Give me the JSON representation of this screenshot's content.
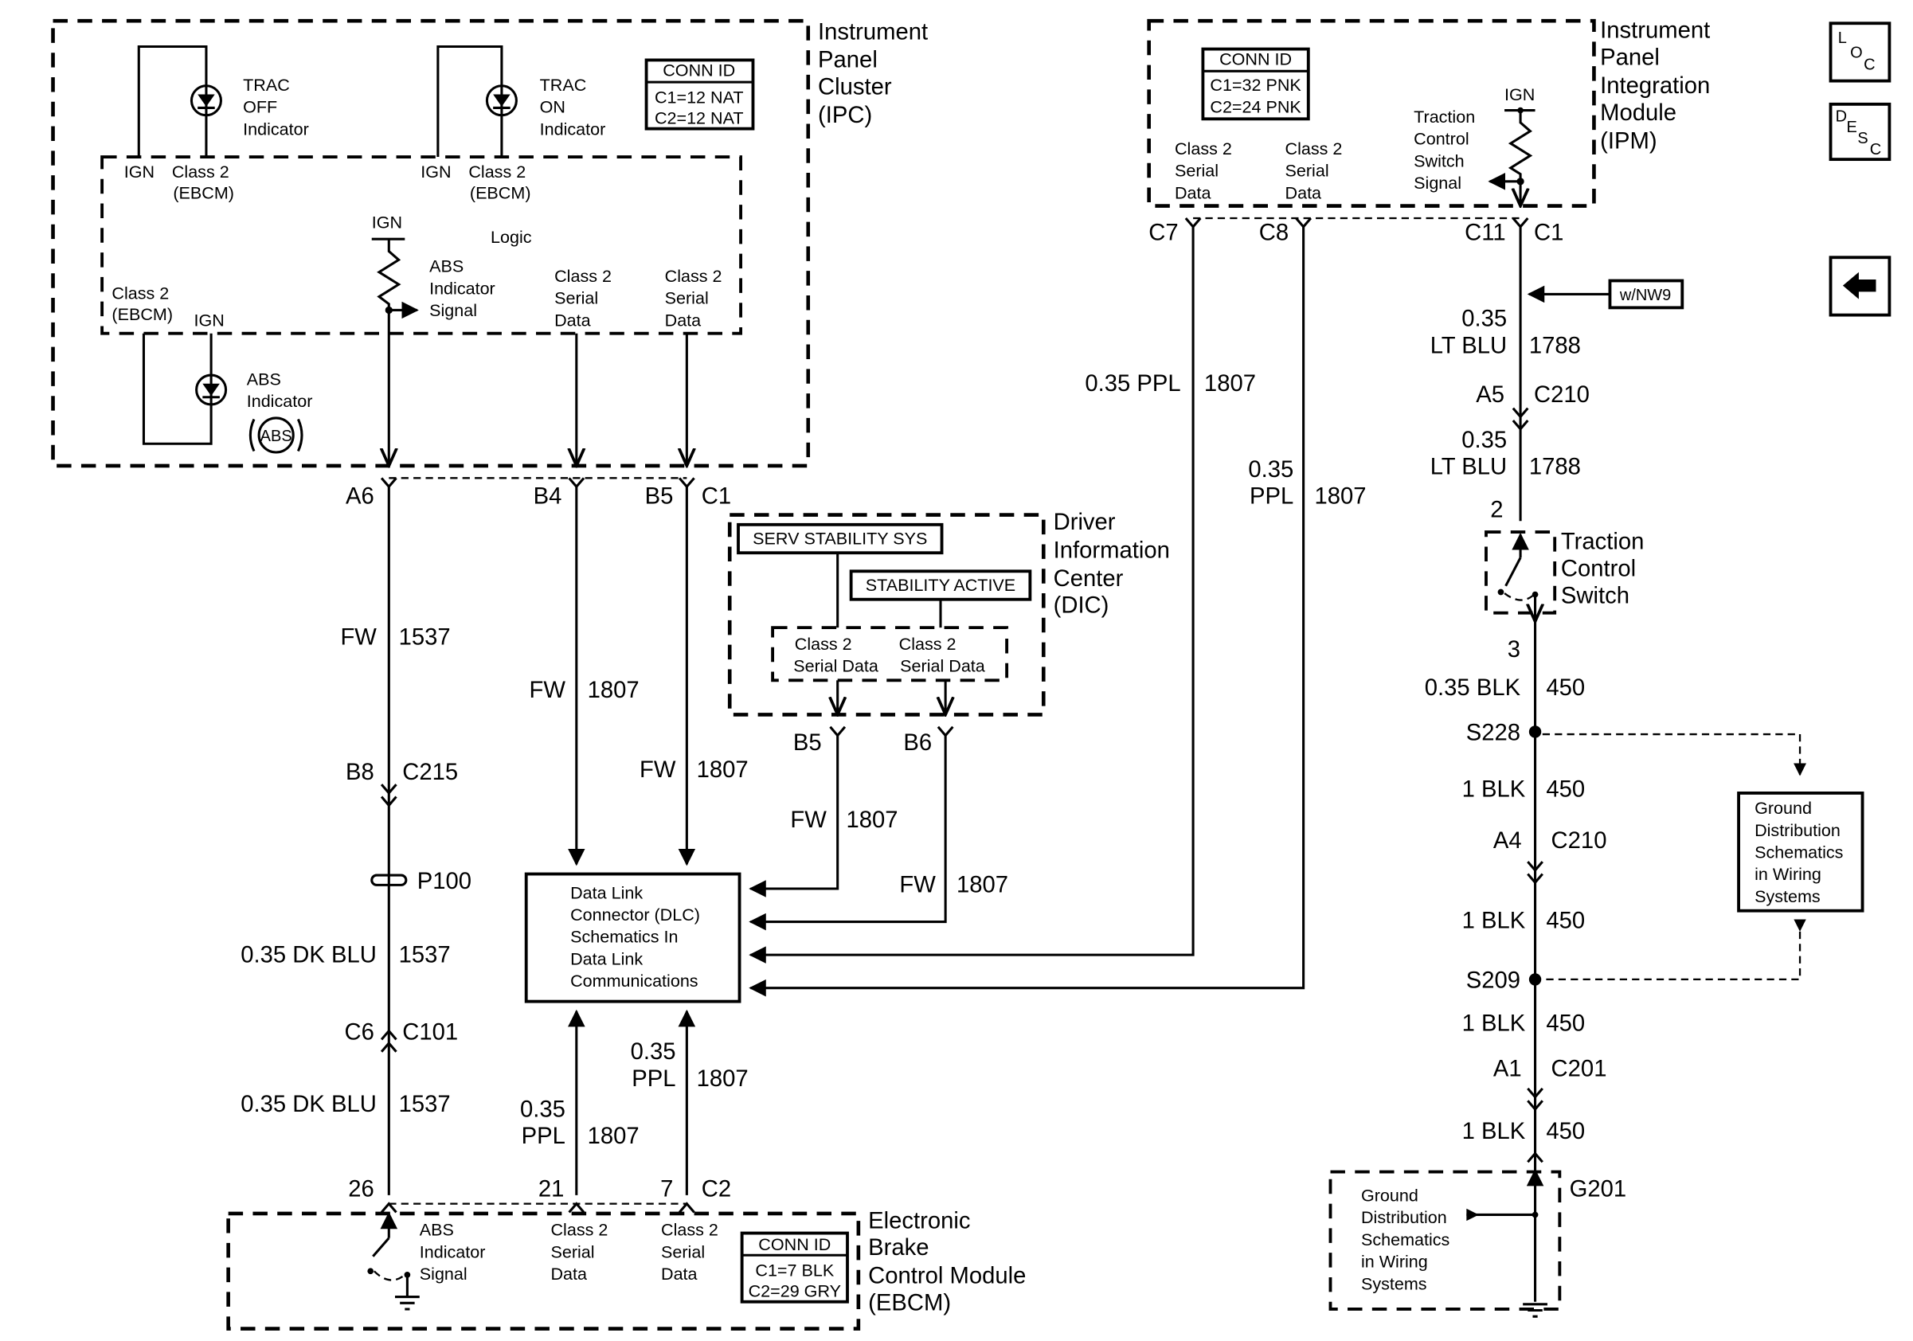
{
  "ipc": {
    "title": [
      "Instrument",
      "Panel",
      "Cluster",
      "(IPC)"
    ],
    "conn_id": {
      "header": "CONN ID",
      "lines": [
        "C1=12 NAT",
        "C2=12 NAT"
      ]
    },
    "trac_off": [
      "TRAC",
      "OFF",
      "Indicator"
    ],
    "trac_on": [
      "TRAC",
      "ON",
      "Indicator"
    ],
    "ign": "IGN",
    "class2_ebcm": [
      "Class 2",
      "(EBCM)"
    ],
    "logic": "Logic",
    "abs_signal": [
      "ABS",
      "Indicator",
      "Signal"
    ],
    "serial_data": [
      "Class 2",
      "Serial",
      "Data"
    ],
    "abs_indicator": [
      "ABS",
      "Indicator"
    ],
    "abs_icon": "ABS",
    "pins": {
      "a6": "A6",
      "b4": "B4",
      "b5": "B5",
      "c1": "C1"
    }
  },
  "ipm": {
    "title": [
      "Instrument",
      "Panel",
      "Integration",
      "Module",
      "(IPM)"
    ],
    "conn_id": {
      "header": "CONN ID",
      "lines": [
        "C1=32 PNK",
        "C2=24 PNK"
      ]
    },
    "serial_data": [
      "Class 2",
      "Serial",
      "Data"
    ],
    "tcs_signal": [
      "Traction",
      "Control",
      "Switch",
      "Signal"
    ],
    "ign": "IGN",
    "pins": {
      "c7": "C7",
      "c8": "C8",
      "c11": "C11",
      "c1": "C1"
    }
  },
  "dic": {
    "title": [
      "Driver",
      "Information",
      "Center",
      "(DIC)"
    ],
    "messages": [
      "SERV STABILITY SYS",
      "STABILITY ACTIVE"
    ],
    "serial_data": [
      "Class 2",
      "Serial Data"
    ],
    "pins": {
      "b5": "B5",
      "b6": "B6"
    }
  },
  "dlc": {
    "lines": [
      "Data Link",
      "Connector (DLC)",
      "Schematics In",
      "Data Link",
      "Communications"
    ]
  },
  "ebcm": {
    "title": [
      "Electronic",
      "Brake",
      "Control Module",
      "(EBCM)"
    ],
    "abs_signal": [
      "ABS",
      "Indicator",
      "Signal"
    ],
    "serial_data": [
      "Class 2",
      "Serial",
      "Data"
    ],
    "conn_id": {
      "header": "CONN ID",
      "lines": [
        "C1=7 BLK",
        "C2=29 GRY"
      ]
    },
    "pins": {
      "p26": "26",
      "p21": "21",
      "p7": "7",
      "c2": "C2"
    }
  },
  "wires": {
    "fw": "FW",
    "c1537": "1537",
    "c1807": "1807",
    "c1788": "1788",
    "c450": "450",
    "ppl": "0.35 PPL",
    "ppl_gauge": "0.35",
    "ppl_color": "PPL",
    "dkblu": "0.35 DK BLU",
    "ltblu_gauge": "0.35",
    "ltblu_color": "LT BLU",
    "blk035": "0.35 BLK",
    "blk1": "1 BLK"
  },
  "connectors": {
    "b8": "B8",
    "c215": "C215",
    "p100": "P100",
    "c6": "C6",
    "c101": "C101",
    "a5": "A5",
    "c210": "C210",
    "a4": "A4",
    "a1": "A1",
    "c201": "C201",
    "s228": "S228",
    "s209": "S209",
    "g201": "G201",
    "pin2": "2",
    "pin3": "3"
  },
  "tcs": {
    "title": [
      "Traction",
      "Control",
      "Switch"
    ]
  },
  "option": "w/NW9",
  "ground_dist": [
    "Ground",
    "Distribution",
    "Schematics",
    "in Wiring",
    "Systems"
  ],
  "nav": {
    "loc": [
      "L",
      "O",
      "C"
    ],
    "desc": [
      "D",
      "E",
      "S",
      "C"
    ],
    "back_icon": "left-arrow-icon"
  }
}
